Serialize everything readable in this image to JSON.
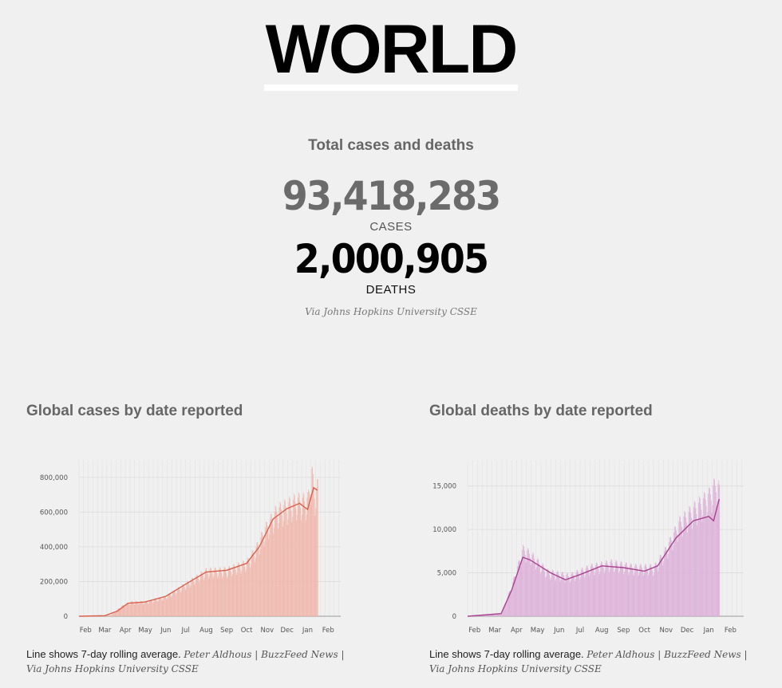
{
  "header": {
    "title": "WORLD"
  },
  "totals": {
    "heading": "Total cases and deaths",
    "cases_value": "93,418,283",
    "cases_label": "CASES",
    "deaths_value": "2,000,905",
    "deaths_label": "DEATHS",
    "source": "Via Johns Hopkins University CSSE"
  },
  "note": {
    "line": "Line shows 7-day rolling average.",
    "credit_1": "Peter Aldhous | BuzzFeed News |",
    "credit_2": "Via Johns Hopkins University CSSE"
  },
  "colors": {
    "cases_bar": "#f0b4a8",
    "cases_line": "#d9604d",
    "deaths_bar": "#dcaed8",
    "deaths_line": "#a8428e"
  },
  "chart_data": [
    {
      "type": "bar",
      "title": "Global cases by date reported",
      "x_tick_labels": [
        "Feb",
        "Mar",
        "Apr",
        "May",
        "Jun",
        "Jul",
        "Aug",
        "Sep",
        "Oct",
        "Nov",
        "Dec",
        "Jan",
        "Feb"
      ],
      "y_ticks": [
        0,
        200000,
        400000,
        600000,
        800000
      ],
      "y_tick_labels": [
        "0",
        "200,000",
        "400,000",
        "600,000",
        "800,000"
      ],
      "ylim": [
        0,
        900000
      ],
      "x_range": [
        "2020-01-22",
        "2021-02-20"
      ],
      "grid": true,
      "series": [
        {
          "kind": "bar",
          "points": [
            [
              "2020-01-22",
              0
            ],
            [
              "2020-02-15",
              2000
            ],
            [
              "2020-03-10",
              7000
            ],
            [
              "2020-03-25",
              55000
            ],
            [
              "2020-04-10",
              80000
            ],
            [
              "2020-05-01",
              80000
            ],
            [
              "2020-06-01",
              110000
            ],
            [
              "2020-07-01",
              180000
            ],
            [
              "2020-08-01",
              255000
            ],
            [
              "2020-09-01",
              260000
            ],
            [
              "2020-10-01",
              300000
            ],
            [
              "2020-10-15",
              380000
            ],
            [
              "2020-11-01",
              510000
            ],
            [
              "2020-11-15",
              590000
            ],
            [
              "2020-12-01",
              620000
            ],
            [
              "2020-12-15",
              650000
            ],
            [
              "2021-01-01",
              650000
            ],
            [
              "2021-01-07",
              810000
            ],
            [
              "2021-01-12",
              680000
            ],
            [
              "2021-01-16",
              730000
            ]
          ]
        },
        {
          "kind": "line",
          "label": "7-day rolling average",
          "points": [
            [
              "2020-01-22",
              0
            ],
            [
              "2020-03-01",
              3000
            ],
            [
              "2020-03-20",
              30000
            ],
            [
              "2020-04-05",
              75000
            ],
            [
              "2020-05-01",
              82000
            ],
            [
              "2020-06-01",
              115000
            ],
            [
              "2020-07-01",
              185000
            ],
            [
              "2020-08-01",
              255000
            ],
            [
              "2020-09-01",
              265000
            ],
            [
              "2020-10-01",
              305000
            ],
            [
              "2020-10-20",
              400000
            ],
            [
              "2020-11-10",
              560000
            ],
            [
              "2020-12-01",
              620000
            ],
            [
              "2020-12-20",
              650000
            ],
            [
              "2021-01-01",
              615000
            ],
            [
              "2021-01-10",
              740000
            ],
            [
              "2021-01-16",
              725000
            ]
          ]
        }
      ]
    },
    {
      "type": "bar",
      "title": "Global deaths by date reported",
      "x_tick_labels": [
        "Feb",
        "Mar",
        "Apr",
        "May",
        "Jun",
        "Jul",
        "Aug",
        "Sep",
        "Oct",
        "Nov",
        "Dec",
        "Jan",
        "Feb"
      ],
      "y_ticks": [
        0,
        5000,
        10000,
        15000
      ],
      "y_tick_labels": [
        "0",
        "5,000",
        "10,000",
        "15,000"
      ],
      "ylim": [
        0,
        18000
      ],
      "x_range": [
        "2020-01-22",
        "2021-02-20"
      ],
      "grid": true,
      "series": [
        {
          "kind": "bar",
          "points": [
            [
              "2020-01-22",
              0
            ],
            [
              "2020-03-10",
              300
            ],
            [
              "2020-03-25",
              3500
            ],
            [
              "2020-04-10",
              7500
            ],
            [
              "2020-04-20",
              7000
            ],
            [
              "2020-05-15",
              5000
            ],
            [
              "2020-06-15",
              4500
            ],
            [
              "2020-07-15",
              5500
            ],
            [
              "2020-08-15",
              6000
            ],
            [
              "2020-09-15",
              5500
            ],
            [
              "2020-10-15",
              5500
            ],
            [
              "2020-11-01",
              7500
            ],
            [
              "2020-11-20",
              10500
            ],
            [
              "2020-12-10",
              12000
            ],
            [
              "2021-01-01",
              13500
            ],
            [
              "2021-01-12",
              15000
            ],
            [
              "2021-01-16",
              14000
            ]
          ]
        },
        {
          "kind": "line",
          "label": "7-day rolling average",
          "points": [
            [
              "2020-01-22",
              0
            ],
            [
              "2020-03-10",
              300
            ],
            [
              "2020-03-25",
              3000
            ],
            [
              "2020-04-10",
              6800
            ],
            [
              "2020-04-20",
              6500
            ],
            [
              "2020-05-20",
              5000
            ],
            [
              "2020-06-10",
              4200
            ],
            [
              "2020-07-01",
              4800
            ],
            [
              "2020-08-01",
              5800
            ],
            [
              "2020-09-01",
              5600
            ],
            [
              "2020-10-01",
              5200
            ],
            [
              "2020-10-20",
              5800
            ],
            [
              "2020-11-15",
              9000
            ],
            [
              "2020-12-10",
              11000
            ],
            [
              "2021-01-01",
              11500
            ],
            [
              "2021-01-08",
              11000
            ],
            [
              "2021-01-16",
              13500
            ]
          ]
        }
      ]
    }
  ]
}
